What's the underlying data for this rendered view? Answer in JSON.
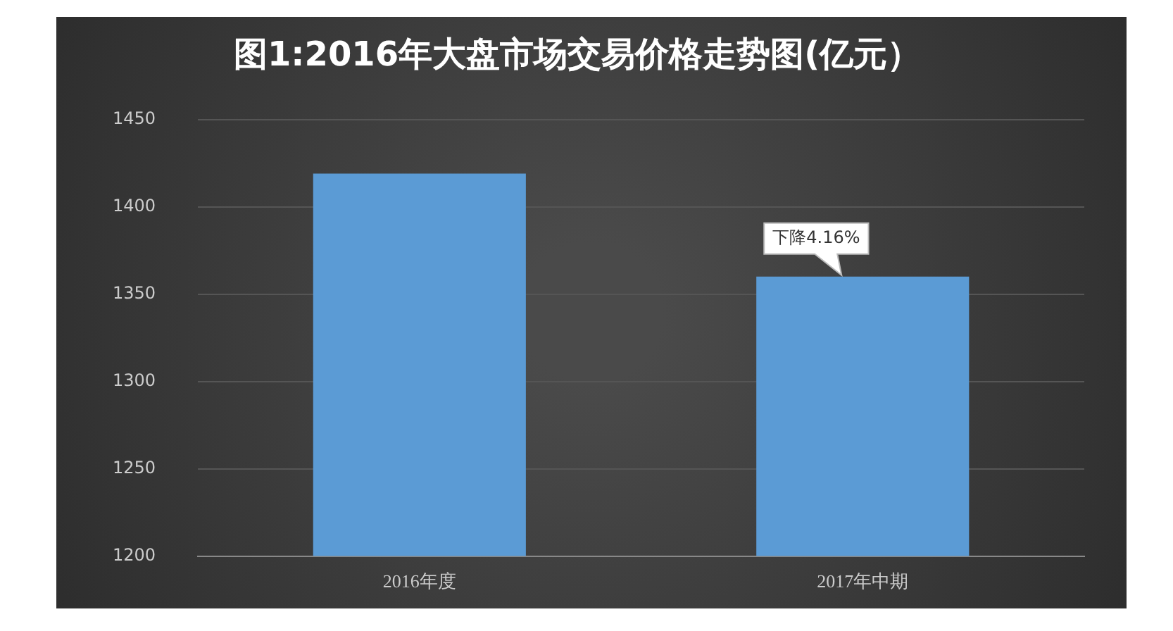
{
  "chart_data": {
    "type": "bar",
    "title": "图1:2016年大盘市场交易价格走势图(亿元）",
    "categories": [
      "2016年度",
      "2017年中期"
    ],
    "values": [
      1419,
      1360
    ],
    "color": "#5b9bd5",
    "ylim": [
      1200,
      1450
    ],
    "yticks": [
      1200,
      1250,
      1300,
      1350,
      1400,
      1450
    ],
    "grid": "y",
    "annotations": [
      {
        "text": "下降4.16%",
        "x": "2017年中期",
        "y": 1360
      }
    ]
  }
}
